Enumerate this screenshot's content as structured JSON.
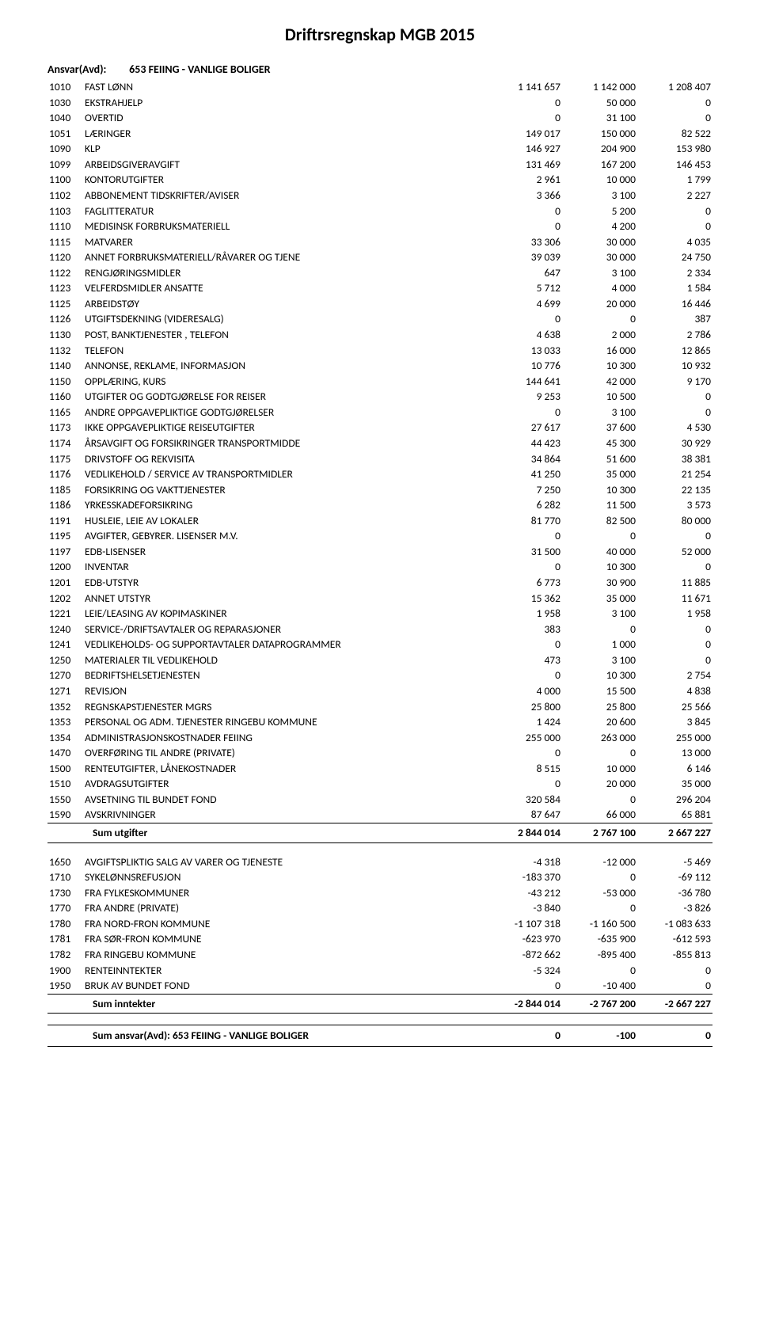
{
  "title": "Driftrsregnskap MGB 2015",
  "section_label": "Ansvar(Avd):",
  "section_title": "653 FEIING - VANLIGE BOLIGER",
  "expenses": [
    {
      "code": "1010",
      "desc": "FAST LØNN",
      "v1": "1 141 657",
      "v2": "1 142 000",
      "v3": "1 208 407"
    },
    {
      "code": "1030",
      "desc": "EKSTRAHJELP",
      "v1": "0",
      "v2": "50 000",
      "v3": "0"
    },
    {
      "code": "1040",
      "desc": "OVERTID",
      "v1": "0",
      "v2": "31 100",
      "v3": "0"
    },
    {
      "code": "1051",
      "desc": "LÆRINGER",
      "v1": "149 017",
      "v2": "150 000",
      "v3": "82 522"
    },
    {
      "code": "1090",
      "desc": "KLP",
      "v1": "146 927",
      "v2": "204 900",
      "v3": "153 980"
    },
    {
      "code": "1099",
      "desc": "ARBEIDSGIVERAVGIFT",
      "v1": "131 469",
      "v2": "167 200",
      "v3": "146 453"
    },
    {
      "code": "1100",
      "desc": "KONTORUTGIFTER",
      "v1": "2 961",
      "v2": "10 000",
      "v3": "1 799"
    },
    {
      "code": "1102",
      "desc": "ABBONEMENT TIDSKRIFTER/AVISER",
      "v1": "3 366",
      "v2": "3 100",
      "v3": "2 227"
    },
    {
      "code": "1103",
      "desc": "FAGLITTERATUR",
      "v1": "0",
      "v2": "5 200",
      "v3": "0"
    },
    {
      "code": "1110",
      "desc": "MEDISINSK FORBRUKSMATERIELL",
      "v1": "0",
      "v2": "4 200",
      "v3": "0"
    },
    {
      "code": "1115",
      "desc": "MATVARER",
      "v1": "33 306",
      "v2": "30 000",
      "v3": "4 035"
    },
    {
      "code": "1120",
      "desc": "ANNET FORBRUKSMATERIELL/RÅVARER OG TJENE",
      "v1": "39 039",
      "v2": "30 000",
      "v3": "24 750"
    },
    {
      "code": "1122",
      "desc": "RENGJØRINGSMIDLER",
      "v1": "647",
      "v2": "3 100",
      "v3": "2 334"
    },
    {
      "code": "1123",
      "desc": "VELFERDSMIDLER  ANSATTE",
      "v1": "5 712",
      "v2": "4 000",
      "v3": "1 584"
    },
    {
      "code": "1125",
      "desc": "ARBEIDSTØY",
      "v1": "4 699",
      "v2": "20 000",
      "v3": "16 446"
    },
    {
      "code": "1126",
      "desc": "UTGIFTSDEKNING (VIDERESALG)",
      "v1": "0",
      "v2": "0",
      "v3": "387"
    },
    {
      "code": "1130",
      "desc": "POST, BANKTJENESTER , TELEFON",
      "v1": "4 638",
      "v2": "2 000",
      "v3": "2 786"
    },
    {
      "code": "1132",
      "desc": "TELEFON",
      "v1": "13 033",
      "v2": "16 000",
      "v3": "12 865"
    },
    {
      "code": "1140",
      "desc": "ANNONSE, REKLAME, INFORMASJON",
      "v1": "10 776",
      "v2": "10 300",
      "v3": "10 932"
    },
    {
      "code": "1150",
      "desc": "OPPLÆRING, KURS",
      "v1": "144 641",
      "v2": "42 000",
      "v3": "9 170"
    },
    {
      "code": "1160",
      "desc": "UTGIFTER OG GODTGJØRELSE FOR REISER",
      "v1": "9 253",
      "v2": "10 500",
      "v3": "0"
    },
    {
      "code": "1165",
      "desc": "ANDRE OPPGAVEPLIKTIGE GODTGJØRELSER",
      "v1": "0",
      "v2": "3 100",
      "v3": "0"
    },
    {
      "code": "1173",
      "desc": "IKKE OPPGAVEPLIKTIGE REISEUTGIFTER",
      "v1": "27 617",
      "v2": "37 600",
      "v3": "4 530"
    },
    {
      "code": "1174",
      "desc": "ÅRSAVGIFT OG FORSIKRINGER TRANSPORTMIDDE",
      "v1": "44 423",
      "v2": "45 300",
      "v3": "30 929"
    },
    {
      "code": "1175",
      "desc": "DRIVSTOFF OG REKVISITA",
      "v1": "34 864",
      "v2": "51 600",
      "v3": "38 381"
    },
    {
      "code": "1176",
      "desc": "VEDLIKEHOLD / SERVICE AV TRANSPORTMIDLER",
      "v1": "41 250",
      "v2": "35 000",
      "v3": "21 254"
    },
    {
      "code": "1185",
      "desc": "FORSIKRING OG VAKTTJENESTER",
      "v1": "7 250",
      "v2": "10 300",
      "v3": "22 135"
    },
    {
      "code": "1186",
      "desc": "YRKESSKADEFORSIKRING",
      "v1": "6 282",
      "v2": "11 500",
      "v3": "3 573"
    },
    {
      "code": "1191",
      "desc": "HUSLEIE, LEIE AV LOKALER",
      "v1": "81 770",
      "v2": "82 500",
      "v3": "80 000"
    },
    {
      "code": "1195",
      "desc": "AVGIFTER, GEBYRER. LISENSER M.V.",
      "v1": "0",
      "v2": "0",
      "v3": "0"
    },
    {
      "code": "1197",
      "desc": "EDB-LISENSER",
      "v1": "31 500",
      "v2": "40 000",
      "v3": "52 000"
    },
    {
      "code": "1200",
      "desc": "INVENTAR",
      "v1": "0",
      "v2": "10 300",
      "v3": "0"
    },
    {
      "code": "1201",
      "desc": "EDB-UTSTYR",
      "v1": "6 773",
      "v2": "30 900",
      "v3": "11 885"
    },
    {
      "code": "1202",
      "desc": "ANNET UTSTYR",
      "v1": "15 362",
      "v2": "35 000",
      "v3": "11 671"
    },
    {
      "code": "1221",
      "desc": "LEIE/LEASING AV KOPIMASKINER",
      "v1": "1 958",
      "v2": "3 100",
      "v3": "1 958"
    },
    {
      "code": "1240",
      "desc": "SERVICE-/DRIFTSAVTALER  OG  REPARASJONER",
      "v1": "383",
      "v2": "0",
      "v3": "0"
    },
    {
      "code": "1241",
      "desc": "VEDLIKEHOLDS- OG SUPPORTAVTALER DATAPROGRAMMER",
      "v1": "0",
      "v2": "1 000",
      "v3": "0"
    },
    {
      "code": "1250",
      "desc": "MATERIALER TIL VEDLIKEHOLD",
      "v1": "473",
      "v2": "3 100",
      "v3": "0"
    },
    {
      "code": "1270",
      "desc": "BEDRIFTSHELSETJENESTEN",
      "v1": "0",
      "v2": "10 300",
      "v3": "2 754"
    },
    {
      "code": "1271",
      "desc": "REVISJON",
      "v1": "4 000",
      "v2": "15 500",
      "v3": "4 838"
    },
    {
      "code": "1352",
      "desc": "REGNSKAPSTJENESTER  MGRS",
      "v1": "25 800",
      "v2": "25 800",
      "v3": "25 566"
    },
    {
      "code": "1353",
      "desc": "PERSONAL OG ADM. TJENESTER RINGEBU KOMMUNE",
      "v1": "1 424",
      "v2": "20 600",
      "v3": "3 845"
    },
    {
      "code": "1354",
      "desc": "ADMINISTRASJONSKOSTNADER FEIING",
      "v1": "255 000",
      "v2": "263 000",
      "v3": "255 000"
    },
    {
      "code": "1470",
      "desc": "OVERFØRING TIL ANDRE (PRIVATE)",
      "v1": "0",
      "v2": "0",
      "v3": "13 000"
    },
    {
      "code": "1500",
      "desc": "RENTEUTGIFTER, LÅNEKOSTNADER",
      "v1": "8 515",
      "v2": "10 000",
      "v3": "6 146"
    },
    {
      "code": "1510",
      "desc": "AVDRAGSUTGIFTER",
      "v1": "0",
      "v2": "20 000",
      "v3": "35 000"
    },
    {
      "code": "1550",
      "desc": "AVSETNING TIL BUNDET FOND",
      "v1": "320 584",
      "v2": "0",
      "v3": "296 204"
    },
    {
      "code": "1590",
      "desc": "AVSKRIVNINGER",
      "v1": "87 647",
      "v2": "66 000",
      "v3": "65 881"
    }
  ],
  "expenses_sum": {
    "label": "Sum utgifter",
    "v1": "2 844 014",
    "v2": "2 767 100",
    "v3": "2 667 227"
  },
  "income": [
    {
      "code": "1650",
      "desc": "AVGIFTSPLIKTIG SALG AV VARER OG TJENESTE",
      "v1": "-4 318",
      "v2": "-12 000",
      "v3": "-5 469"
    },
    {
      "code": "1710",
      "desc": "SYKELØNNSREFUSJON",
      "v1": "-183 370",
      "v2": "0",
      "v3": "-69 112"
    },
    {
      "code": "1730",
      "desc": "FRA FYLKESKOMMUNER",
      "v1": "-43 212",
      "v2": "-53 000",
      "v3": "-36 780"
    },
    {
      "code": "1770",
      "desc": "FRA ANDRE (PRIVATE)",
      "v1": "-3 840",
      "v2": "0",
      "v3": "-3 826"
    },
    {
      "code": "1780",
      "desc": "FRA NORD-FRON KOMMUNE",
      "v1": "-1 107 318",
      "v2": "-1 160 500",
      "v3": "-1 083 633"
    },
    {
      "code": "1781",
      "desc": "FRA SØR-FRON KOMMUNE",
      "v1": "-623 970",
      "v2": "-635 900",
      "v3": "-612 593"
    },
    {
      "code": "1782",
      "desc": "FRA RINGEBU KOMMUNE",
      "v1": "-872 662",
      "v2": "-895 400",
      "v3": "-855 813"
    },
    {
      "code": "1900",
      "desc": "RENTEINNTEKTER",
      "v1": "-5 324",
      "v2": "0",
      "v3": "0"
    },
    {
      "code": "1950",
      "desc": "BRUK AV BUNDET FOND",
      "v1": "0",
      "v2": "-10 400",
      "v3": "0"
    }
  ],
  "income_sum": {
    "label": "Sum inntekter",
    "v1": "-2 844 014",
    "v2": "-2 767 200",
    "v3": "-2 667 227"
  },
  "total": {
    "label": "Sum ansvar(Avd): 653 FEIING - VANLIGE BOLIGER",
    "v1": "0",
    "v2": "-100",
    "v3": "0"
  }
}
